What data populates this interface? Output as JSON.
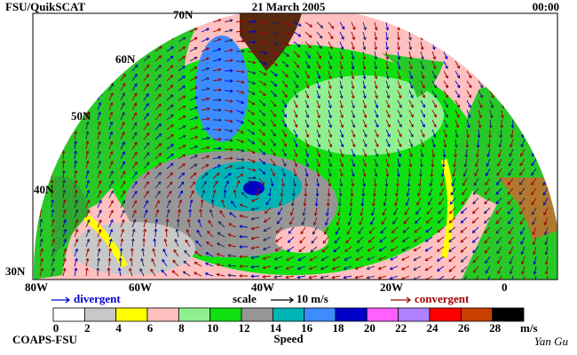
{
  "header": {
    "left": "FSU/QuikSCAT",
    "center": "21 March 2005",
    "right": "00:00"
  },
  "map": {
    "lat_labels": [
      "70N",
      "60N",
      "50N",
      "40N",
      "30N"
    ],
    "lon_labels": [
      "80W",
      "60W",
      "40W",
      "20W",
      "0"
    ]
  },
  "legend": {
    "divergent": "divergent",
    "scale": "scale",
    "scale_value": "10 m/s",
    "convergent": "convergent"
  },
  "colorbar": {
    "colors": [
      "#ffffff",
      "#c8c8c8",
      "#ffff00",
      "#ffc0c0",
      "#90f090",
      "#10e010",
      "#969696",
      "#00b4b4",
      "#3c8cff",
      "#0000c8",
      "#ff60ff",
      "#b080ff",
      "#ff0000",
      "#c84000",
      "#000000"
    ],
    "ticks": [
      0,
      2,
      4,
      6,
      8,
      10,
      12,
      14,
      16,
      18,
      20,
      22,
      24,
      26,
      28
    ],
    "unit": "m/s",
    "title": "Speed"
  },
  "footer": {
    "left": "COAPS-FSU",
    "right": "Yan Gu"
  }
}
